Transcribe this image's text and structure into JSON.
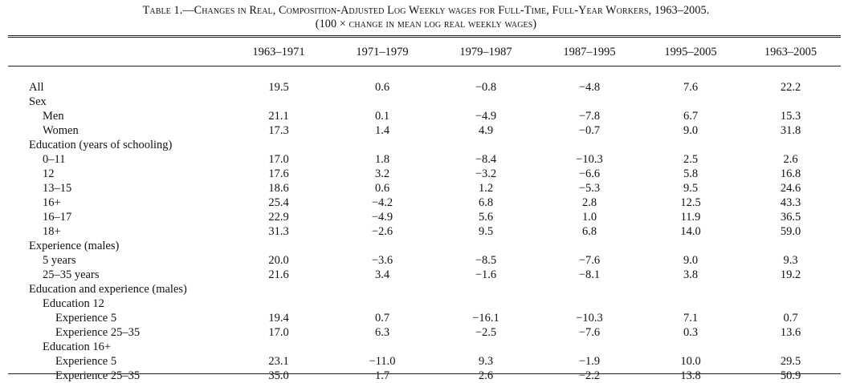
{
  "caption": {
    "title": "Table 1.—Changes in Real, Composition-Adjusted Log Weekly wages for Full-Time, Full-Year Workers, 1963–2005.",
    "subtitle": "(100 × change in mean log real weekly wages)"
  },
  "columns": [
    "1963–1971",
    "1971–1979",
    "1979–1987",
    "1987–1995",
    "1995–2005",
    "1963–2005"
  ],
  "rows": [
    {
      "label": "All",
      "indent": 0,
      "values": [
        "19.5",
        "0.6",
        "−0.8",
        "−4.8",
        "7.6",
        "22.2"
      ]
    },
    {
      "label": "Sex",
      "indent": 0,
      "values": [
        "",
        "",
        "",
        "",
        "",
        ""
      ]
    },
    {
      "label": "Men",
      "indent": 1,
      "values": [
        "21.1",
        "0.1",
        "−4.9",
        "−7.8",
        "6.7",
        "15.3"
      ]
    },
    {
      "label": "Women",
      "indent": 1,
      "values": [
        "17.3",
        "1.4",
        "4.9",
        "−0.7",
        "9.0",
        "31.8"
      ]
    },
    {
      "label": "Education (years of schooling)",
      "indent": 0,
      "values": [
        "",
        "",
        "",
        "",
        "",
        ""
      ]
    },
    {
      "label": "0–11",
      "indent": 1,
      "values": [
        "17.0",
        "1.8",
        "−8.4",
        "−10.3",
        "2.5",
        "2.6"
      ]
    },
    {
      "label": "12",
      "indent": 1,
      "values": [
        "17.6",
        "3.2",
        "−3.2",
        "−6.6",
        "5.8",
        "16.8"
      ]
    },
    {
      "label": "13–15",
      "indent": 1,
      "values": [
        "18.6",
        "0.6",
        "1.2",
        "−5.3",
        "9.5",
        "24.6"
      ]
    },
    {
      "label": "16+",
      "indent": 1,
      "values": [
        "25.4",
        "−4.2",
        "6.8",
        "2.8",
        "12.5",
        "43.3"
      ]
    },
    {
      "label": "16–17",
      "indent": 1,
      "values": [
        "22.9",
        "−4.9",
        "5.6",
        "1.0",
        "11.9",
        "36.5"
      ]
    },
    {
      "label": "18+",
      "indent": 1,
      "values": [
        "31.3",
        "−2.6",
        "9.5",
        "6.8",
        "14.0",
        "59.0"
      ]
    },
    {
      "label": "Experience (males)",
      "indent": 0,
      "values": [
        "",
        "",
        "",
        "",
        "",
        ""
      ]
    },
    {
      "label": "5 years",
      "indent": 1,
      "values": [
        "20.0",
        "−3.6",
        "−8.5",
        "−7.6",
        "9.0",
        "9.3"
      ]
    },
    {
      "label": "25–35 years",
      "indent": 1,
      "values": [
        "21.6",
        "3.4",
        "−1.6",
        "−8.1",
        "3.8",
        "19.2"
      ]
    },
    {
      "label": "Education and experience (males)",
      "indent": 0,
      "values": [
        "",
        "",
        "",
        "",
        "",
        ""
      ]
    },
    {
      "label": "Education 12",
      "indent": 2,
      "values": [
        "",
        "",
        "",
        "",
        "",
        ""
      ]
    },
    {
      "label": "Experience 5",
      "indent": 3,
      "values": [
        "19.4",
        "0.7",
        "−16.1",
        "−10.3",
        "7.1",
        "0.7"
      ]
    },
    {
      "label": "Experience 25–35",
      "indent": 3,
      "values": [
        "17.0",
        "6.3",
        "−2.5",
        "−7.6",
        "0.3",
        "13.6"
      ]
    },
    {
      "label": "Education 16+",
      "indent": 2,
      "values": [
        "",
        "",
        "",
        "",
        "",
        ""
      ]
    },
    {
      "label": "Experience 5",
      "indent": 3,
      "values": [
        "23.1",
        "−11.0",
        "9.3",
        "−1.9",
        "10.0",
        "29.5"
      ]
    },
    {
      "label": "Experience 25–35",
      "indent": 3,
      "values": [
        "35.0",
        "1.7",
        "2.6",
        "−2.2",
        "13.8",
        "50.9"
      ]
    }
  ]
}
